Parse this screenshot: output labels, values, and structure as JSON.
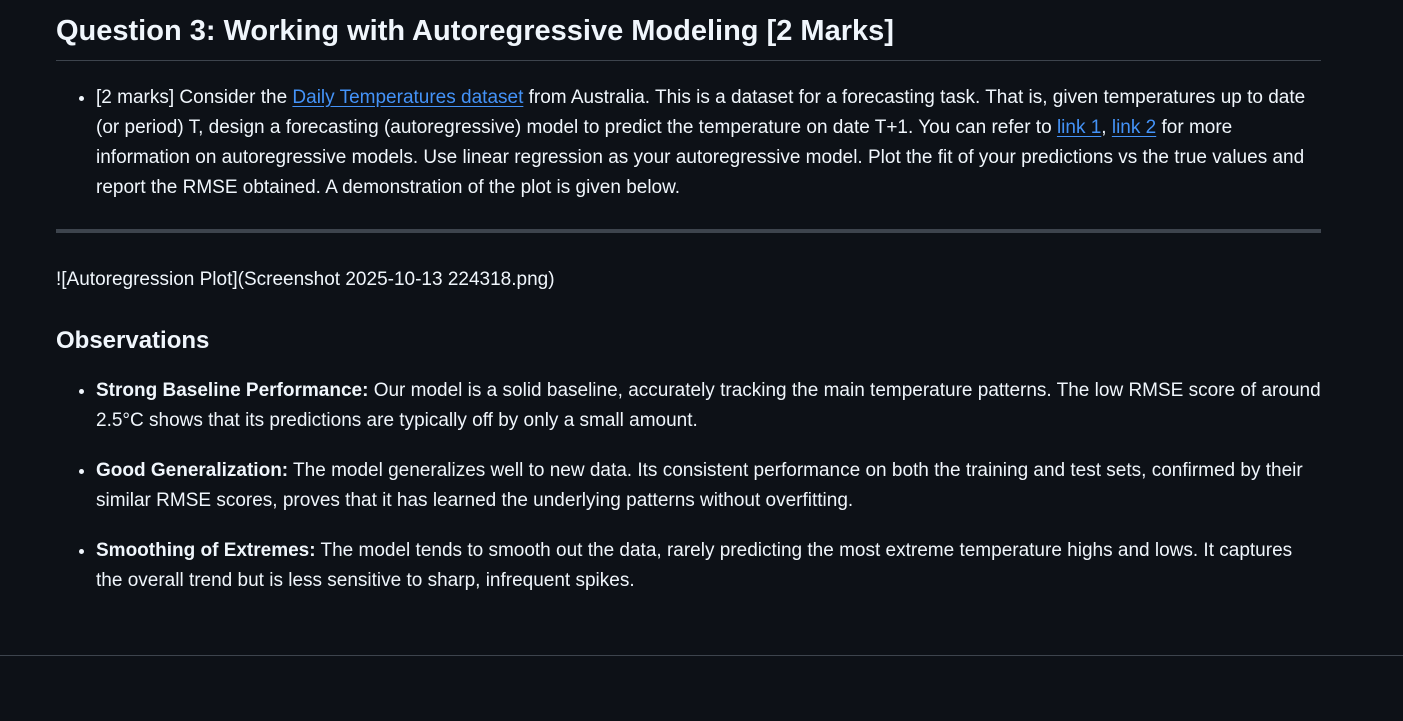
{
  "question": {
    "title": "Question 3: Working with Autoregressive Modeling [2 Marks]",
    "item": {
      "text_1": "[2 marks] Consider the ",
      "link_dataset": "Daily Temperatures dataset",
      "text_2": " from Australia. This is a dataset for a forecasting task. That is, given temperatures up to date (or period) T, design a forecasting (autoregressive) model to predict the temperature on date T+1. You can refer to ",
      "link_1": "link 1",
      "sep": ", ",
      "link_2": "link 2",
      "text_3": " for more information on autoregressive models. Use linear regression as your autoregressive model. Plot the fit of your predictions vs the true values and report the RMSE obtained. A demonstration of the plot is given below."
    }
  },
  "image_markdown": "![Autoregression Plot](Screenshot 2025-10-13 224318.png)",
  "observations": {
    "title": "Observations",
    "items": [
      {
        "label": "Strong Baseline Performance:",
        "text": " Our model is a solid baseline, accurately tracking the main temperature patterns. The low RMSE score of around 2.5°C shows that its predictions are typically off by only a small amount."
      },
      {
        "label": "Good Generalization:",
        "text": " The model generalizes well to new data. Its consistent performance on both the training and test sets, confirmed by their similar RMSE scores, proves that it has learned the underlying patterns without overfitting."
      },
      {
        "label": "Smoothing of Extremes:",
        "text": " The model tends to smooth out the data, rarely predicting the most extreme temperature highs and lows. It captures the overall trend but is less sensitive to sharp, infrequent spikes."
      }
    ]
  },
  "colors": {
    "background": "#0d1117",
    "text": "#f0f6fc",
    "link": "#4493f8",
    "rule": "#3d444d"
  }
}
